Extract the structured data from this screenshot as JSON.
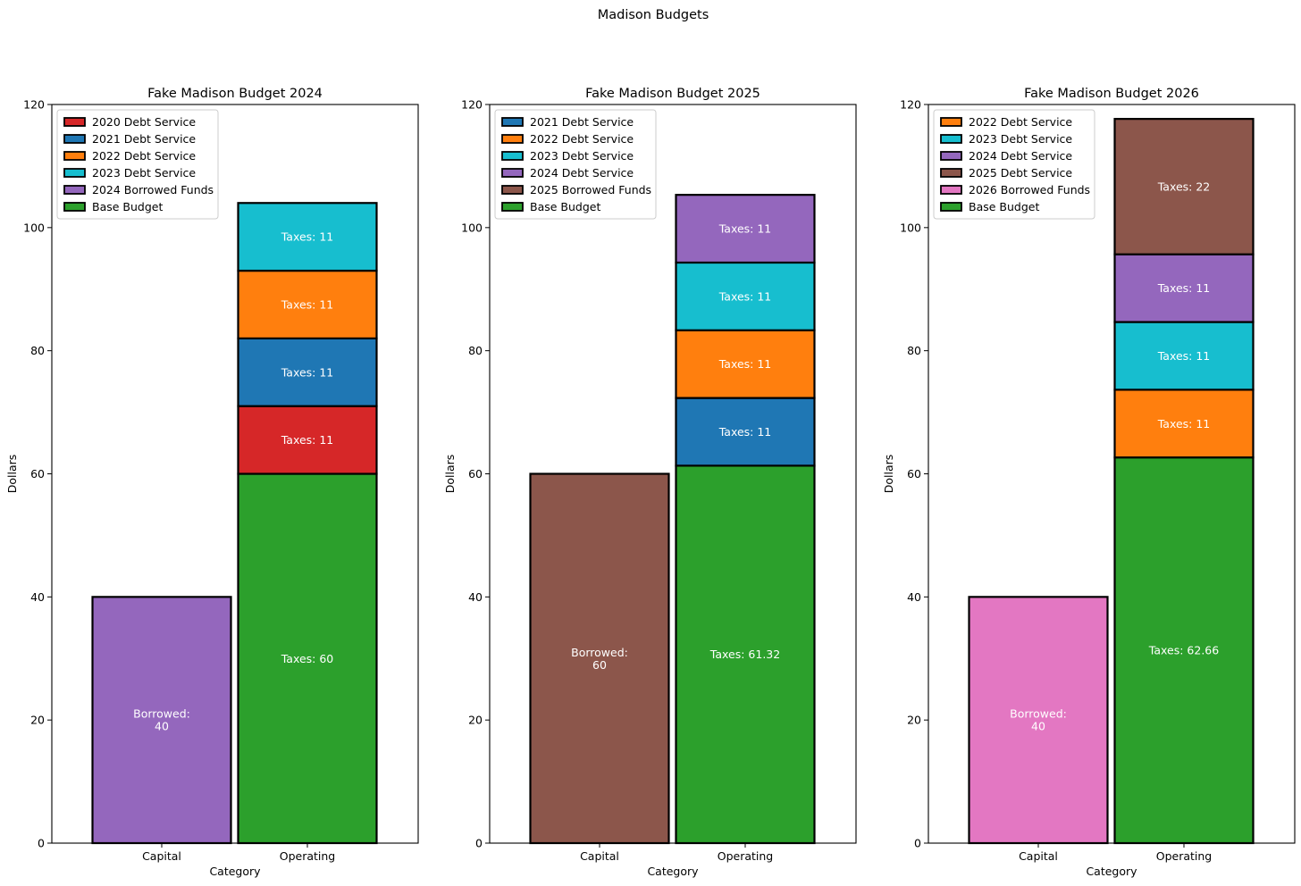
{
  "figure": {
    "title": "Madison Budgets"
  },
  "colors": {
    "debt_2020": "#d62728",
    "debt_2021": "#1f77b4",
    "debt_2022": "#ff7f0e",
    "debt_2023": "#17becf",
    "debt_2024": "#9467bd",
    "borrowed_2024": "#9467bd",
    "borrowed_2025": "#8c564b",
    "borrowed_2026": "#e377c2",
    "debt_2025": "#8c564b",
    "base": "#2ca02c"
  },
  "chart_data": [
    {
      "type": "bar",
      "stacked": true,
      "title": "Fake Madison Budget 2024",
      "xlabel": "Category",
      "ylabel": "Dollars",
      "ylim": [
        0,
        120
      ],
      "yticks": [
        0,
        20,
        40,
        60,
        80,
        100,
        120
      ],
      "categories": [
        "Capital",
        "Operating"
      ],
      "legend_position": "upper-left",
      "legend": [
        {
          "label": "2020 Debt Service",
          "color": "#d62728"
        },
        {
          "label": "2021 Debt Service",
          "color": "#1f77b4"
        },
        {
          "label": "2022 Debt Service",
          "color": "#ff7f0e"
        },
        {
          "label": "2023 Debt Service",
          "color": "#17becf"
        },
        {
          "label": "2024 Borrowed Funds",
          "color": "#9467bd"
        },
        {
          "label": "Base Budget",
          "color": "#2ca02c"
        }
      ],
      "segments": [
        {
          "category": "Capital",
          "series": "2024 Borrowed Funds",
          "value": 40,
          "label": "Borrowed:\n40",
          "color": "#9467bd"
        },
        {
          "category": "Operating",
          "series": "Base Budget",
          "value": 60,
          "label": "Taxes: 60",
          "color": "#2ca02c"
        },
        {
          "category": "Operating",
          "series": "2020 Debt Service",
          "value": 11,
          "label": "Taxes: 11",
          "color": "#d62728"
        },
        {
          "category": "Operating",
          "series": "2021 Debt Service",
          "value": 11,
          "label": "Taxes: 11",
          "color": "#1f77b4"
        },
        {
          "category": "Operating",
          "series": "2022 Debt Service",
          "value": 11,
          "label": "Taxes: 11",
          "color": "#ff7f0e"
        },
        {
          "category": "Operating",
          "series": "2023 Debt Service",
          "value": 11,
          "label": "Taxes: 11",
          "color": "#17becf"
        }
      ]
    },
    {
      "type": "bar",
      "stacked": true,
      "title": "Fake Madison Budget 2025",
      "xlabel": "Category",
      "ylabel": "Dollars",
      "ylim": [
        0,
        120
      ],
      "yticks": [
        0,
        20,
        40,
        60,
        80,
        100,
        120
      ],
      "categories": [
        "Capital",
        "Operating"
      ],
      "legend_position": "upper-left",
      "legend": [
        {
          "label": "2021 Debt Service",
          "color": "#1f77b4"
        },
        {
          "label": "2022 Debt Service",
          "color": "#ff7f0e"
        },
        {
          "label": "2023 Debt Service",
          "color": "#17becf"
        },
        {
          "label": "2024 Debt Service",
          "color": "#9467bd"
        },
        {
          "label": "2025 Borrowed Funds",
          "color": "#8c564b"
        },
        {
          "label": "Base Budget",
          "color": "#2ca02c"
        }
      ],
      "segments": [
        {
          "category": "Capital",
          "series": "2025 Borrowed Funds",
          "value": 60,
          "label": "Borrowed:\n60",
          "color": "#8c564b"
        },
        {
          "category": "Operating",
          "series": "Base Budget",
          "value": 61.32,
          "label": "Taxes: 61.32",
          "color": "#2ca02c"
        },
        {
          "category": "Operating",
          "series": "2021 Debt Service",
          "value": 11,
          "label": "Taxes: 11",
          "color": "#1f77b4"
        },
        {
          "category": "Operating",
          "series": "2022 Debt Service",
          "value": 11,
          "label": "Taxes: 11",
          "color": "#ff7f0e"
        },
        {
          "category": "Operating",
          "series": "2023 Debt Service",
          "value": 11,
          "label": "Taxes: 11",
          "color": "#17becf"
        },
        {
          "category": "Operating",
          "series": "2024 Debt Service",
          "value": 11,
          "label": "Taxes: 11",
          "color": "#9467bd"
        }
      ]
    },
    {
      "type": "bar",
      "stacked": true,
      "title": "Fake Madison Budget 2026",
      "xlabel": "Category",
      "ylabel": "Dollars",
      "ylim": [
        0,
        120
      ],
      "yticks": [
        0,
        20,
        40,
        60,
        80,
        100,
        120
      ],
      "categories": [
        "Capital",
        "Operating"
      ],
      "legend_position": "upper-left",
      "legend": [
        {
          "label": "2022 Debt Service",
          "color": "#ff7f0e"
        },
        {
          "label": "2023 Debt Service",
          "color": "#17becf"
        },
        {
          "label": "2024 Debt Service",
          "color": "#9467bd"
        },
        {
          "label": "2025 Debt Service",
          "color": "#8c564b"
        },
        {
          "label": "2026 Borrowed Funds",
          "color": "#e377c2"
        },
        {
          "label": "Base Budget",
          "color": "#2ca02c"
        }
      ],
      "segments": [
        {
          "category": "Capital",
          "series": "2026 Borrowed Funds",
          "value": 40,
          "label": "Borrowed:\n40",
          "color": "#e377c2"
        },
        {
          "category": "Operating",
          "series": "Base Budget",
          "value": 62.66,
          "label": "Taxes: 62.66",
          "color": "#2ca02c"
        },
        {
          "category": "Operating",
          "series": "2022 Debt Service",
          "value": 11,
          "label": "Taxes: 11",
          "color": "#ff7f0e"
        },
        {
          "category": "Operating",
          "series": "2023 Debt Service",
          "value": 11,
          "label": "Taxes: 11",
          "color": "#17becf"
        },
        {
          "category": "Operating",
          "series": "2024 Debt Service",
          "value": 11,
          "label": "Taxes: 11",
          "color": "#9467bd"
        },
        {
          "category": "Operating",
          "series": "2025 Debt Service",
          "value": 22,
          "label": "Taxes: 22",
          "color": "#8c564b"
        }
      ]
    }
  ]
}
